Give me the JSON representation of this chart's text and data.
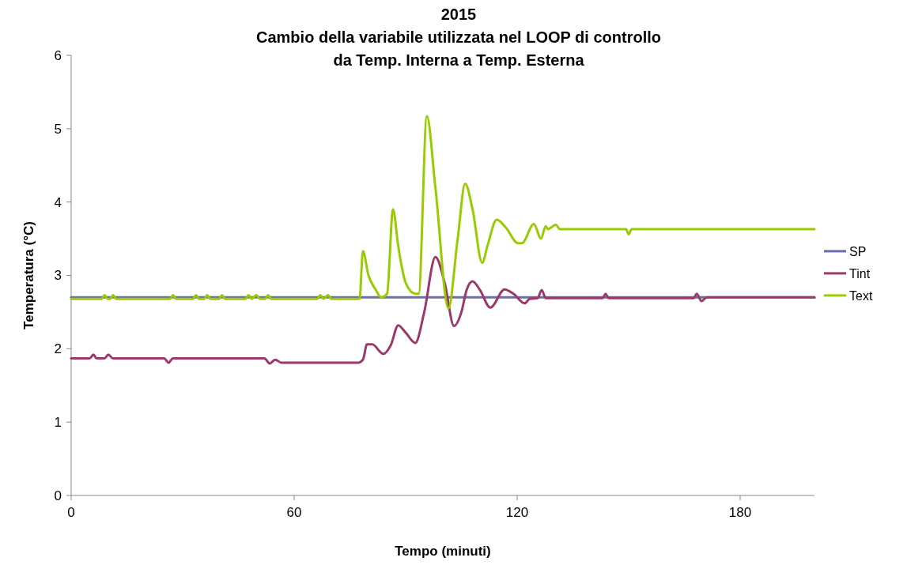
{
  "chart_data": {
    "type": "line",
    "title": "2015\nCambio della variabile utilizzata nel LOOP di controllo\nda Temp. Interna a Temp. Esterna",
    "xlabel": "Tempo (minuti)",
    "ylabel": "Temperatura (°C)",
    "xlim": [
      0,
      200
    ],
    "xticks": [
      0,
      60,
      120,
      180
    ],
    "ylim": [
      0,
      6
    ],
    "yticks": [
      0,
      1,
      2,
      3,
      4,
      5,
      6
    ],
    "grid": false,
    "legend": "right",
    "marker": "none",
    "line_style": "solid",
    "series": [
      {
        "name": "SP",
        "color": "#6c6ca8",
        "x": [
          0,
          200
        ],
        "values": [
          2.7,
          2.7
        ]
      },
      {
        "name": "Tint",
        "color": "#9b3a6a",
        "x": [
          0,
          5,
          6,
          6.8,
          9,
          10,
          11.2,
          25,
          26.2,
          27.4,
          52,
          53.4,
          54.9,
          56.6,
          77.2,
          78.5,
          79.6,
          81,
          84,
          86,
          88,
          90,
          92.6,
          95,
          98,
          100.5,
          103,
          105,
          106.4,
          108,
          110,
          112.8,
          116.6,
          119,
          122,
          123.4,
          125.5,
          126.6,
          127.7,
          143,
          143.8,
          144.6,
          167.5,
          168.3,
          169.6,
          171,
          200
        ],
        "values": [
          1.87,
          1.87,
          1.92,
          1.87,
          1.87,
          1.92,
          1.87,
          1.87,
          1.81,
          1.87,
          1.87,
          1.8,
          1.85,
          1.81,
          1.81,
          1.85,
          2.06,
          2.06,
          1.93,
          2.05,
          2.32,
          2.22,
          2.08,
          2.5,
          3.25,
          2.9,
          2.31,
          2.5,
          2.8,
          2.92,
          2.8,
          2.56,
          2.81,
          2.75,
          2.62,
          2.68,
          2.69,
          2.8,
          2.69,
          2.69,
          2.75,
          2.69,
          2.69,
          2.75,
          2.65,
          2.7,
          2.7
        ]
      },
      {
        "name": "Text",
        "color": "#99cc00",
        "x": [
          0,
          8.2,
          9,
          9.8,
          10.5,
          11.3,
          12.1,
          26.6,
          27.4,
          28.2,
          32.8,
          33.6,
          34.4,
          35.8,
          36.6,
          37.4,
          39.8,
          40.6,
          41.4,
          46.9,
          47.7,
          48.6,
          49.8,
          50.8,
          52.2,
          53,
          53.8,
          66.2,
          67,
          67.9,
          69.1,
          70,
          77.6,
          78.5,
          80,
          82,
          83.4,
          85,
          86.6,
          88,
          90,
          92.6,
          93.5,
          95.7,
          98,
          101.5,
          104,
          106,
          108,
          110.6,
          112,
          114.5,
          117,
          120.2,
          121.3,
          124.5,
          126.4,
          127.7,
          128.3,
          130.4,
          131.5,
          149.3,
          150,
          150.8,
          200
        ],
        "values": [
          2.68,
          2.68,
          2.73,
          2.68,
          2.68,
          2.73,
          2.68,
          2.68,
          2.73,
          2.68,
          2.68,
          2.73,
          2.68,
          2.68,
          2.73,
          2.68,
          2.68,
          2.73,
          2.68,
          2.68,
          2.73,
          2.68,
          2.73,
          2.68,
          2.68,
          2.73,
          2.68,
          2.68,
          2.73,
          2.68,
          2.73,
          2.68,
          2.68,
          3.33,
          3.0,
          2.8,
          2.7,
          2.75,
          3.9,
          3.4,
          2.9,
          2.75,
          2.75,
          5.17,
          4.2,
          2.55,
          3.5,
          4.25,
          3.9,
          3.17,
          3.4,
          3.76,
          3.65,
          3.44,
          3.44,
          3.7,
          3.5,
          3.67,
          3.63,
          3.69,
          3.63,
          3.63,
          3.56,
          3.63,
          3.63
        ]
      }
    ]
  }
}
